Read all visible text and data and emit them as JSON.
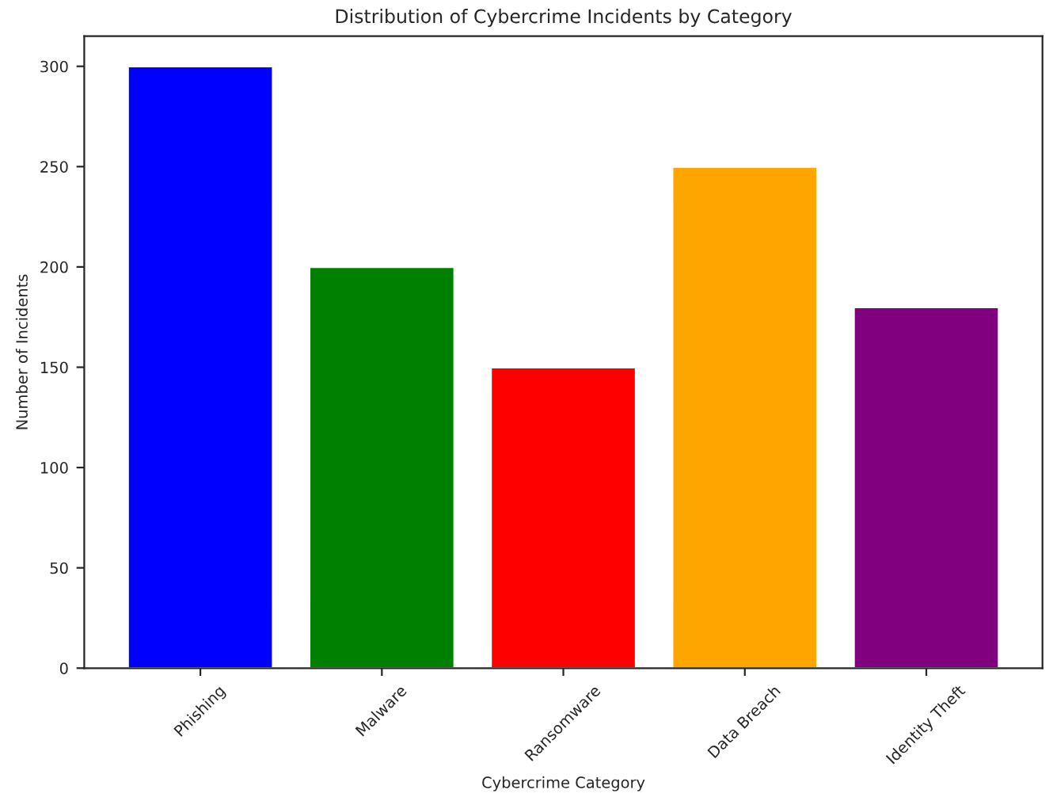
{
  "chart_data": {
    "type": "bar",
    "title": "Distribution of Cybercrime Incidents by Category",
    "xlabel": "Cybercrime Category",
    "ylabel": "Number of Incidents",
    "categories": [
      "Phishing",
      "Malware",
      "Ransomware",
      "Data Breach",
      "Identity Theft"
    ],
    "values": [
      300,
      200,
      150,
      250,
      180
    ],
    "colors": [
      "#0000ff",
      "#008000",
      "#ff0000",
      "#ffa500",
      "#800080"
    ],
    "ylim": [
      0,
      315
    ],
    "yticks": [
      0,
      50,
      100,
      150,
      200,
      250,
      300
    ],
    "grid": false,
    "legend": false
  }
}
